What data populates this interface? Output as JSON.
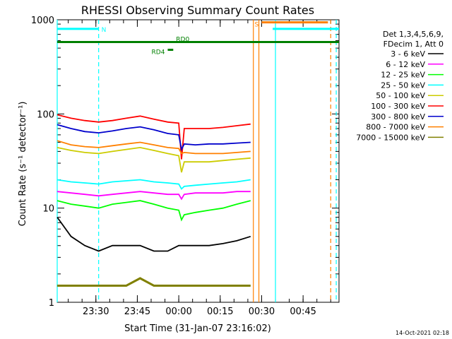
{
  "chart_data": {
    "type": "line",
    "title": "RHESSI Observing Summary Count Rates",
    "xlabel": "Start Time (31-Jan-07 23:16:02)",
    "ylabel": "Count Rate (s⁻¹ detector⁻¹)",
    "y_scale": "log",
    "ylim": [
      1,
      1000
    ],
    "xlim_minutes": [
      0,
      102
    ],
    "x_ticks": [
      {
        "label": "23:30",
        "minute": 14
      },
      {
        "label": "23:45",
        "minute": 29
      },
      {
        "label": "00:00",
        "minute": 44
      },
      {
        "label": "00:15",
        "minute": 59
      },
      {
        "label": "00:30",
        "minute": 74
      },
      {
        "label": "00:45",
        "minute": 89
      }
    ],
    "y_ticks": [
      {
        "label": "1",
        "value": 1
      },
      {
        "label": "10",
        "value": 10
      },
      {
        "label": "100",
        "value": 100
      },
      {
        "label": "1000",
        "value": 1000
      }
    ],
    "legend_header": [
      "Det 1,3,4,5,6,9,",
      "FDecim 1, Att 0"
    ],
    "legend_position": "right",
    "series": [
      {
        "name": "3 - 6 keV",
        "color": "#000000",
        "x": [
          0,
          5,
          10,
          15,
          20,
          25,
          30,
          35,
          40,
          44,
          50,
          55,
          60,
          65,
          70
        ],
        "y": [
          8,
          5,
          4,
          3.5,
          4,
          4,
          4,
          3.5,
          3.5,
          4,
          4,
          4,
          4.2,
          4.5,
          5
        ]
      },
      {
        "name": "6 - 12 keV",
        "color": "#ff00ff",
        "x": [
          0,
          5,
          10,
          15,
          20,
          25,
          30,
          35,
          40,
          44,
          45,
          46,
          50,
          55,
          60,
          65,
          70
        ],
        "y": [
          15,
          14.5,
          14,
          13.5,
          14,
          14.5,
          15,
          14.5,
          14,
          14,
          12.5,
          14,
          14.5,
          14.5,
          14.5,
          15,
          15
        ]
      },
      {
        "name": "12 - 25 keV",
        "color": "#00ff00",
        "x": [
          0,
          5,
          10,
          15,
          20,
          25,
          30,
          35,
          40,
          44,
          45,
          46,
          50,
          55,
          60,
          65,
          70
        ],
        "y": [
          12,
          11,
          10.5,
          10,
          11,
          11.5,
          12,
          11,
          10,
          9.5,
          7.5,
          8.5,
          9,
          9.5,
          10,
          11,
          12
        ]
      },
      {
        "name": "25 - 50 keV",
        "color": "#00ffff",
        "x": [
          0,
          5,
          10,
          15,
          20,
          25,
          30,
          35,
          40,
          44,
          45,
          46,
          50,
          55,
          60,
          65,
          70
        ],
        "y": [
          20,
          19,
          18.5,
          18,
          19,
          19.5,
          20,
          19,
          18.5,
          18,
          16,
          17,
          17.5,
          18,
          18.5,
          19,
          20
        ]
      },
      {
        "name": "50 - 100 keV",
        "color": "#cccc00",
        "x": [
          0,
          5,
          10,
          15,
          20,
          25,
          30,
          35,
          40,
          44,
          45,
          46,
          50,
          55,
          60,
          65,
          70
        ],
        "y": [
          44,
          41,
          39,
          38,
          40,
          42,
          44,
          41,
          38,
          36,
          24,
          31,
          31,
          31,
          32,
          33,
          34
        ]
      },
      {
        "name": "100 - 300 keV",
        "color": "#ff0000",
        "x": [
          0,
          5,
          10,
          15,
          20,
          25,
          30,
          35,
          40,
          44,
          45,
          46,
          50,
          55,
          60,
          65,
          70
        ],
        "y": [
          98,
          90,
          85,
          82,
          85,
          90,
          95,
          88,
          82,
          80,
          33,
          70,
          70,
          70,
          72,
          75,
          78
        ]
      },
      {
        "name": "300 - 800 keV",
        "color": "#0000cc",
        "x": [
          0,
          5,
          10,
          15,
          20,
          25,
          30,
          35,
          40,
          44,
          45,
          46,
          50,
          55,
          60,
          65,
          70
        ],
        "y": [
          77,
          70,
          65,
          63,
          66,
          70,
          73,
          68,
          62,
          60,
          42,
          48,
          47,
          48,
          48,
          49,
          50
        ]
      },
      {
        "name": "800 - 7000 keV",
        "color": "#ff8000",
        "x": [
          0,
          5,
          10,
          15,
          20,
          25,
          30,
          35,
          40,
          44,
          45,
          46,
          50,
          55,
          60,
          65,
          70
        ],
        "y": [
          52,
          47,
          45,
          44,
          46,
          48,
          50,
          47,
          44,
          43,
          38,
          39,
          38,
          38,
          38,
          39,
          40
        ]
      },
      {
        "name": "7000 - 15000 keV",
        "color": "#808000",
        "x": [
          0,
          5,
          10,
          15,
          20,
          25,
          30,
          35,
          40,
          44,
          50,
          55,
          60,
          65,
          70
        ],
        "y": [
          1.5,
          1.5,
          1.5,
          1.5,
          1.5,
          1.5,
          1.8,
          1.5,
          1.5,
          1.5,
          1.5,
          1.5,
          1.5,
          1.5,
          1.5
        ]
      }
    ],
    "flag_bars": [
      {
        "label": "N",
        "color": "#00ffff",
        "x_start": 0,
        "x_end": 15,
        "y": 800
      },
      {
        "label": "RD0",
        "color": "#008000",
        "x_start": 0,
        "x_end": 102,
        "y": 580
      },
      {
        "label": "RD4",
        "color": "#008000",
        "x_start": 40,
        "x_end": 42,
        "y": 480
      },
      {
        "label": "S",
        "color": "#ff8000",
        "x_start": 74,
        "x_end": 98,
        "y": 940
      },
      {
        "label": "",
        "color": "#00ffff",
        "x_start": 78,
        "x_end": 102,
        "y": 800
      }
    ],
    "vertical_markers": [
      {
        "minute": 0,
        "color": "#00ffff",
        "style": "solid"
      },
      {
        "minute": 15,
        "color": "#00ffff",
        "style": "dashed"
      },
      {
        "minute": 71,
        "color": "#ff8000",
        "style": "solid"
      },
      {
        "minute": 73,
        "color": "#ff8000",
        "style": "solid"
      },
      {
        "minute": 79,
        "color": "#00ffff",
        "style": "solid"
      },
      {
        "minute": 99,
        "color": "#ff8000",
        "style": "dashed"
      },
      {
        "minute": 101,
        "color": "#00ffff",
        "style": "dashed"
      }
    ],
    "gap": {
      "x_start": 73,
      "x_end": 102
    }
  },
  "timestamp": "14-Oct-2021 02:18"
}
